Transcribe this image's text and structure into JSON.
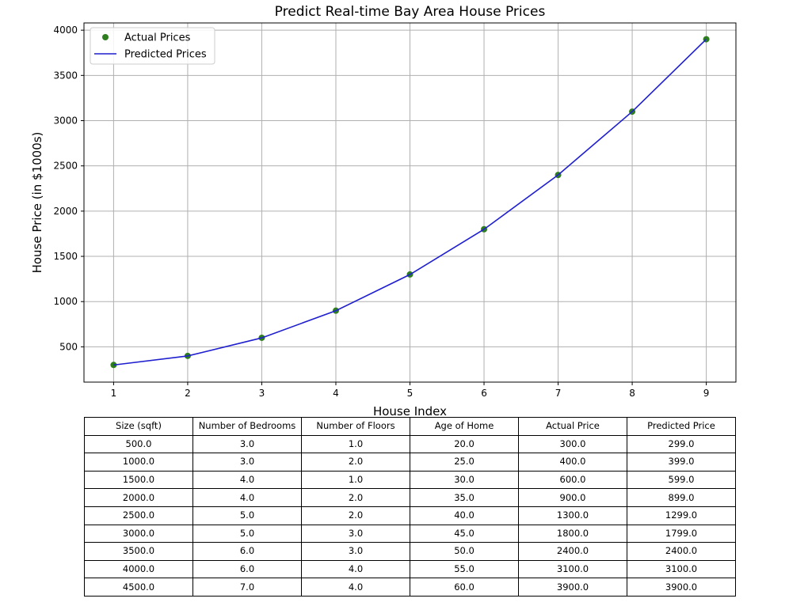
{
  "chart_data": {
    "type": "line",
    "title": "Predict Real-time Bay Area House Prices",
    "xlabel": "House Index",
    "ylabel": "House Price (in $1000s)",
    "x": [
      1,
      2,
      3,
      4,
      5,
      6,
      7,
      8,
      9
    ],
    "xlim": [
      0.6,
      9.4
    ],
    "ylim": [
      110,
      4080
    ],
    "xticks": [
      1,
      2,
      3,
      4,
      5,
      6,
      7,
      8,
      9
    ],
    "yticks": [
      500,
      1000,
      1500,
      2000,
      2500,
      3000,
      3500,
      4000
    ],
    "grid": true,
    "legend_position": "top-left",
    "series": [
      {
        "name": "Actual Prices",
        "kind": "scatter",
        "color": "#2e7d1e",
        "values": [
          300,
          400,
          600,
          900,
          1300,
          1800,
          2400,
          3100,
          3900
        ]
      },
      {
        "name": "Predicted Prices",
        "kind": "line",
        "color": "#1f1fcf",
        "values": [
          299,
          399,
          599,
          899,
          1299,
          1799,
          2400,
          3100,
          3900
        ]
      }
    ]
  },
  "table": {
    "headers": [
      "Size (sqft)",
      "Number of Bedrooms",
      "Number of Floors",
      "Age of Home",
      "Actual Price",
      "Predicted Price"
    ],
    "rows": [
      [
        "500.0",
        "3.0",
        "1.0",
        "20.0",
        "300.0",
        "299.0"
      ],
      [
        "1000.0",
        "3.0",
        "2.0",
        "25.0",
        "400.0",
        "399.0"
      ],
      [
        "1500.0",
        "4.0",
        "1.0",
        "30.0",
        "600.0",
        "599.0"
      ],
      [
        "2000.0",
        "4.0",
        "2.0",
        "35.0",
        "900.0",
        "899.0"
      ],
      [
        "2500.0",
        "5.0",
        "2.0",
        "40.0",
        "1300.0",
        "1299.0"
      ],
      [
        "3000.0",
        "5.0",
        "3.0",
        "45.0",
        "1800.0",
        "1799.0"
      ],
      [
        "3500.0",
        "6.0",
        "3.0",
        "50.0",
        "2400.0",
        "2400.0"
      ],
      [
        "4000.0",
        "6.0",
        "4.0",
        "55.0",
        "3100.0",
        "3100.0"
      ],
      [
        "4500.0",
        "7.0",
        "4.0",
        "60.0",
        "3900.0",
        "3900.0"
      ]
    ]
  }
}
